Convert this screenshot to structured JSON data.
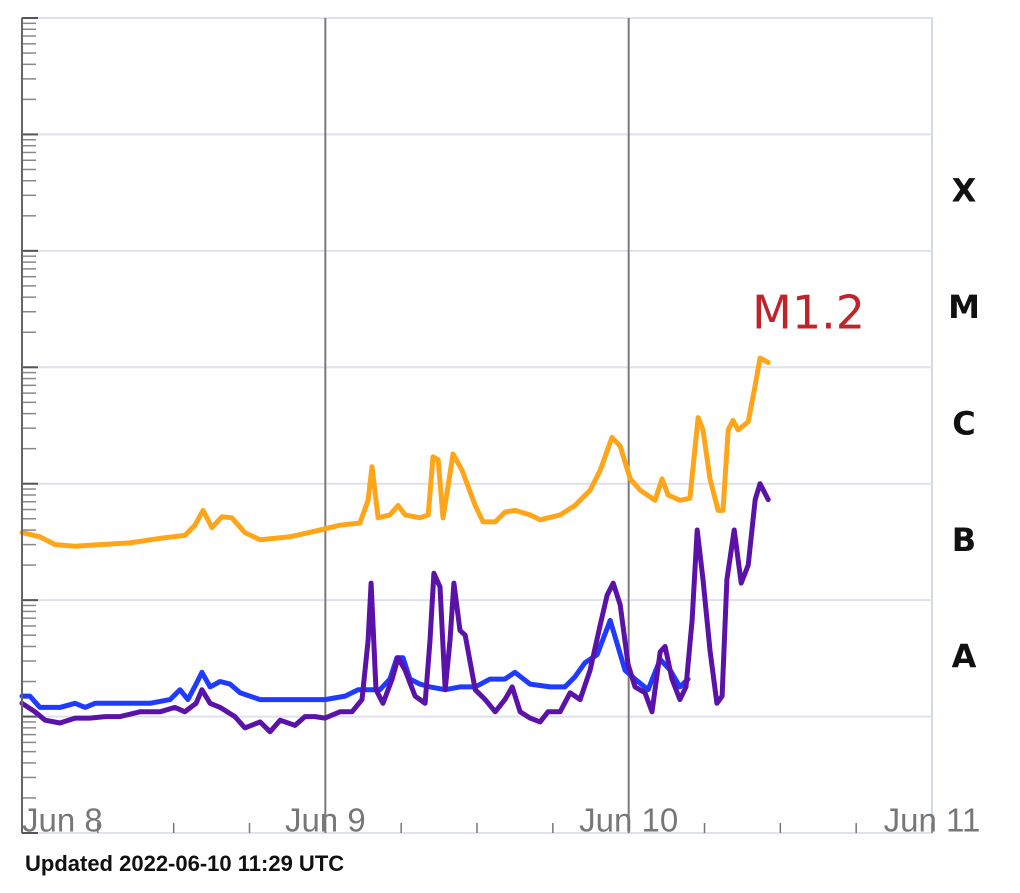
{
  "chart_data": {
    "type": "line",
    "xlim": [
      0,
      3
    ],
    "xticks": [
      {
        "value": 0,
        "label": "Jun 8"
      },
      {
        "value": 1,
        "label": "Jun 9"
      },
      {
        "value": 2,
        "label": "Jun 10"
      },
      {
        "value": 3,
        "label": "Jun 11"
      }
    ],
    "x_minor_step": 0.25,
    "ylim": [
      1e-09,
      0.01
    ],
    "yticks": [
      1e-09,
      1e-08,
      1e-07,
      1e-06,
      1e-05,
      0.0001,
      0.001,
      0.01
    ],
    "log_y": true,
    "y_minor_ticks": true,
    "grid": true,
    "class_labels": [
      {
        "label": "X",
        "range": [
          0.0001,
          0.001
        ]
      },
      {
        "label": "M",
        "range": [
          1e-05,
          0.0001
        ]
      },
      {
        "label": "C",
        "range": [
          1e-06,
          1e-05
        ]
      },
      {
        "label": "B",
        "range": [
          1e-07,
          1e-06
        ]
      },
      {
        "label": "A",
        "range": [
          1e-08,
          1e-07
        ]
      }
    ],
    "annotations": [
      {
        "text": "M1.2",
        "color": "#c0242b"
      }
    ],
    "series": [
      {
        "color": "#ffa51a",
        "x": [
          0,
          0.059,
          0.109,
          0.175,
          0.257,
          0.356,
          0.455,
          0.537,
          0.57,
          0.597,
          0.626,
          0.659,
          0.692,
          0.735,
          0.785,
          0.884,
          0.983,
          1.048,
          1.114,
          1.141,
          1.154,
          1.174,
          1.213,
          1.24,
          1.263,
          1.312,
          1.339,
          1.355,
          1.372,
          1.388,
          1.405,
          1.421,
          1.451,
          1.494,
          1.52,
          1.56,
          1.592,
          1.625,
          1.675,
          1.708,
          1.774,
          1.823,
          1.873,
          1.906,
          1.945,
          1.972,
          2.005,
          2.038,
          2.087,
          2.11,
          2.13,
          2.169,
          2.202,
          2.229,
          2.245,
          2.268,
          2.295,
          2.311,
          2.328,
          2.344,
          2.361,
          2.394,
          2.417,
          2.433,
          2.46
        ],
        "values": [
          3.8e-07,
          3.5e-07,
          3e-07,
          2.9e-07,
          3e-07,
          3.1e-07,
          3.4e-07,
          3.6e-07,
          4.4e-07,
          5.9e-07,
          4.2e-07,
          5.2e-07,
          5.1e-07,
          3.8e-07,
          3.3e-07,
          3.5e-07,
          4e-07,
          4.4e-07,
          4.6e-07,
          7.2e-07,
          1.4e-06,
          5.1e-07,
          5.4e-07,
          6.5e-07,
          5.4e-07,
          5.1e-07,
          5.4e-07,
          1.7e-06,
          1.6e-06,
          5.1e-07,
          9.7e-07,
          1.8e-06,
          1.3e-06,
          6.5e-07,
          4.7e-07,
          4.7e-07,
          5.7e-07,
          5.9e-07,
          5.4e-07,
          4.9e-07,
          5.4e-07,
          6.5e-07,
          8.8e-07,
          1.3e-06,
          2.5e-06,
          2.1e-06,
          1.1e-06,
          8.8e-07,
          7.2e-07,
          1.1e-06,
          8e-07,
          7.2e-07,
          7.5e-07,
          3.7e-06,
          2.9e-06,
          1.1e-06,
          5.9e-07,
          5.9e-07,
          2.9e-06,
          3.5e-06,
          2.9e-06,
          3.4e-06,
          7e-06,
          1.2e-05,
          1.1e-05
        ]
      },
      {
        "color": "#1f3bff",
        "x": [
          0,
          0.026,
          0.059,
          0.125,
          0.175,
          0.208,
          0.241,
          0.274,
          0.307,
          0.356,
          0.422,
          0.488,
          0.521,
          0.547,
          0.574,
          0.593,
          0.62,
          0.653,
          0.686,
          0.719,
          0.785,
          0.851,
          0.917,
          0.999,
          1.065,
          1.108,
          1.147,
          1.18,
          1.213,
          1.236,
          1.256,
          1.279,
          1.312,
          1.345,
          1.395,
          1.444,
          1.494,
          1.543,
          1.592,
          1.625,
          1.675,
          1.741,
          1.79,
          1.823,
          1.856,
          1.896,
          1.939,
          1.988,
          2.021,
          2.064,
          2.104,
          2.137,
          2.169,
          2.196
        ],
        "values": [
          1.5e-08,
          1.5e-08,
          1.2e-08,
          1.2e-08,
          1.3e-08,
          1.2e-08,
          1.3e-08,
          1.3e-08,
          1.3e-08,
          1.3e-08,
          1.3e-08,
          1.4e-08,
          1.7e-08,
          1.4e-08,
          1.9e-08,
          2.4e-08,
          1.8e-08,
          2e-08,
          1.9e-08,
          1.6e-08,
          1.4e-08,
          1.4e-08,
          1.4e-08,
          1.4e-08,
          1.5e-08,
          1.7e-08,
          1.7e-08,
          1.7e-08,
          2.1e-08,
          3.2e-08,
          3.2e-08,
          2.1e-08,
          1.9e-08,
          1.8e-08,
          1.7e-08,
          1.8e-08,
          1.8e-08,
          2.1e-08,
          2.1e-08,
          2.4e-08,
          1.9e-08,
          1.8e-08,
          1.8e-08,
          2.2e-08,
          2.9e-08,
          3.4e-08,
          6.7e-08,
          2.5e-08,
          2.1e-08,
          1.7e-08,
          3.1e-08,
          2.5e-08,
          1.8e-08,
          2.1e-08
        ]
      },
      {
        "color": "#5b12a8",
        "x": [
          0,
          0.043,
          0.076,
          0.125,
          0.175,
          0.224,
          0.274,
          0.323,
          0.389,
          0.455,
          0.504,
          0.537,
          0.574,
          0.593,
          0.62,
          0.653,
          0.702,
          0.735,
          0.785,
          0.818,
          0.851,
          0.9,
          0.933,
          0.966,
          0.999,
          1.048,
          1.088,
          1.121,
          1.141,
          1.151,
          1.167,
          1.19,
          1.22,
          1.24,
          1.263,
          1.296,
          1.329,
          1.345,
          1.358,
          1.378,
          1.395,
          1.411,
          1.424,
          1.444,
          1.461,
          1.494,
          1.527,
          1.56,
          1.592,
          1.616,
          1.642,
          1.675,
          1.708,
          1.734,
          1.774,
          1.807,
          1.84,
          1.873,
          1.906,
          1.929,
          1.949,
          1.972,
          1.998,
          2.021,
          2.054,
          2.077,
          2.104,
          2.12,
          2.143,
          2.169,
          2.189,
          2.209,
          2.226,
          2.245,
          2.268,
          2.291,
          2.308,
          2.324,
          2.348,
          2.371,
          2.394,
          2.417,
          2.433,
          2.46
        ],
        "values": [
          1.3e-08,
          1.1e-08,
          9.3e-09,
          8.8e-09,
          9.7e-09,
          9.7e-09,
          1e-08,
          1e-08,
          1.1e-08,
          1.1e-08,
          1.2e-08,
          1.1e-08,
          1.3e-08,
          1.7e-08,
          1.3e-08,
          1.2e-08,
          1e-08,
          8e-09,
          9e-09,
          7.4e-09,
          9.3e-09,
          8.4e-09,
          1e-08,
          1e-08,
          9.7e-09,
          1.1e-08,
          1.1e-08,
          1.4e-08,
          4.5e-08,
          1.4e-07,
          1.7e-08,
          1.3e-08,
          2.1e-08,
          3.2e-08,
          2.5e-08,
          1.5e-08,
          1.3e-08,
          4.5e-08,
          1.7e-07,
          1.3e-07,
          1.7e-08,
          4.5e-08,
          1.4e-07,
          5.5e-08,
          5e-08,
          1.7e-08,
          1.4e-08,
          1.1e-08,
          1.4e-08,
          1.8e-08,
          1.1e-08,
          9.7e-09,
          9e-09,
          1.1e-08,
          1.1e-08,
          1.6e-08,
          1.4e-08,
          2.5e-08,
          6.1e-08,
          1.1e-07,
          1.4e-07,
          9.1e-08,
          2.8e-08,
          1.8e-08,
          1.6e-08,
          1.1e-08,
          3.6e-08,
          4e-08,
          2.1e-08,
          1.4e-08,
          1.8e-08,
          6.7e-08,
          4e-07,
          1.5e-07,
          3.7e-08,
          1.3e-08,
          1.5e-08,
          1.5e-07,
          4e-07,
          1.4e-07,
          2e-07,
          7.3e-07,
          1e-06,
          7.3e-07
        ]
      }
    ]
  },
  "footer": "Updated 2022-06-10 11:29 UTC"
}
